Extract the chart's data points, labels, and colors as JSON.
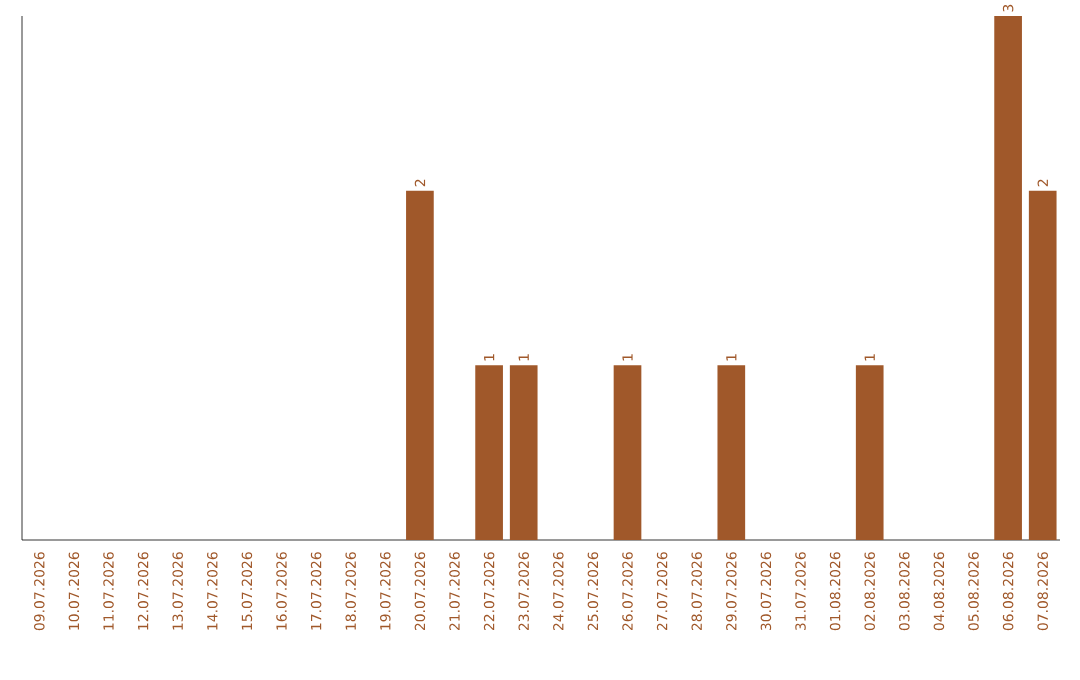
{
  "chart_data": {
    "type": "bar",
    "categories": [
      "09.07.2026",
      "10.07.2026",
      "11.07.2026",
      "12.07.2026",
      "13.07.2026",
      "14.07.2026",
      "15.07.2026",
      "16.07.2026",
      "17.07.2026",
      "18.07.2026",
      "19.07.2026",
      "20.07.2026",
      "21.07.2026",
      "22.07.2026",
      "23.07.2026",
      "24.07.2026",
      "25.07.2026",
      "26.07.2026",
      "27.07.2026",
      "28.07.2026",
      "29.07.2026",
      "30.07.2026",
      "31.07.2026",
      "01.08.2026",
      "02.08.2026",
      "03.08.2026",
      "04.08.2026",
      "05.08.2026",
      "06.08.2026",
      "07.08.2026"
    ],
    "values": [
      0,
      0,
      0,
      0,
      0,
      0,
      0,
      0,
      0,
      0,
      0,
      2,
      0,
      1,
      1,
      0,
      0,
      1,
      0,
      0,
      1,
      0,
      0,
      0,
      1,
      0,
      0,
      0,
      3,
      2
    ],
    "value_labels": [
      null,
      null,
      null,
      null,
      null,
      null,
      null,
      null,
      null,
      null,
      null,
      "2",
      null,
      "1",
      "1",
      null,
      null,
      "1",
      null,
      null,
      "1",
      null,
      null,
      null,
      "1",
      null,
      null,
      null,
      "3",
      "2"
    ],
    "color": "#a0582a",
    "grid": false,
    "tick_labels": "x"
  }
}
